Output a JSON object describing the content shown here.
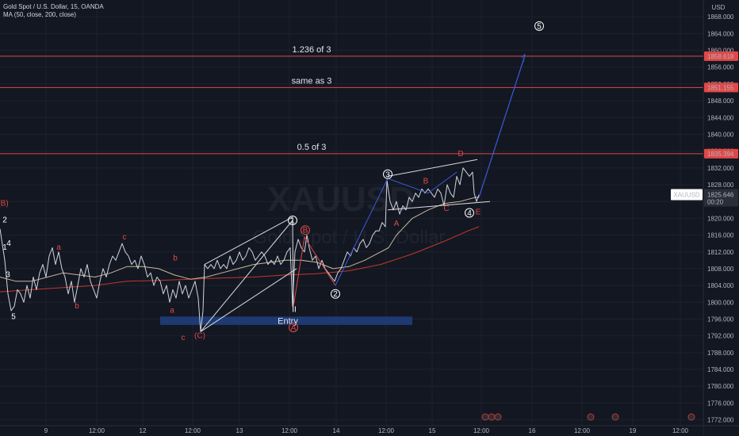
{
  "header": {
    "symbol_line": "Gold Spot / U.S. Dollar, 15, OANDA",
    "ma_line": "MA (50, close, 200, close)"
  },
  "colors": {
    "background": "#131722",
    "grid": "#1e222d",
    "price_line": "#d1d4dc",
    "ma50": "#c8b89a",
    "ma200": "#c0392b",
    "level": "#e04848",
    "wave_white": "#d8dbe2",
    "wave_blue": "#3b5bdb",
    "label_red": "#e04848",
    "entry_band": "#1f3a72"
  },
  "chart_data": {
    "type": "line",
    "currency": "USD",
    "y_ticks": [
      1772,
      1776,
      1780,
      1784,
      1788,
      1792,
      1796,
      1800,
      1804,
      1808,
      1812,
      1816,
      1820,
      1824,
      1828,
      1832,
      1836,
      1840,
      1844,
      1848,
      1852,
      1856,
      1860,
      1864,
      1868
    ],
    "y_tick_labels": [
      "1772.000",
      "1776.000",
      "1780.000",
      "1784.000",
      "1788.000",
      "1792.000",
      "1796.000",
      "1800.000",
      "1804.000",
      "1808.000",
      "1812.000",
      "1816.000",
      "1820.000",
      "1824.000",
      "1828.000",
      "1832.000",
      "1836.000",
      "1840.000",
      "1844.000",
      "1848.000",
      "1852.000",
      "1856.000",
      "1860.000",
      "1864.000",
      "1868.000"
    ],
    "ylim": [
      1770.6,
      1872
    ],
    "xlim": [
      0,
      900
    ],
    "x_ticks": [
      {
        "label": "9",
        "x": 58
      },
      {
        "label": "12:00",
        "x": 122
      },
      {
        "label": "12",
        "x": 180
      },
      {
        "label": "12:00",
        "x": 243
      },
      {
        "label": "13",
        "x": 302
      },
      {
        "label": "12:00",
        "x": 365
      },
      {
        "label": "14",
        "x": 424
      },
      {
        "label": "12:00",
        "x": 487
      },
      {
        "label": "15",
        "x": 545
      },
      {
        "label": "12:00",
        "x": 607
      },
      {
        "label": "16",
        "x": 671
      },
      {
        "label": "12:00",
        "x": 734
      },
      {
        "label": "19",
        "x": 798
      },
      {
        "label": "12:00",
        "x": 858
      }
    ],
    "price": [
      [
        0,
        1817.5
      ],
      [
        6,
        1810
      ],
      [
        10,
        1802
      ],
      [
        14,
        1798
      ],
      [
        18,
        1799
      ],
      [
        22,
        1803
      ],
      [
        26,
        1802
      ],
      [
        30,
        1800
      ],
      [
        34,
        1804
      ],
      [
        38,
        1801
      ],
      [
        42,
        1806
      ],
      [
        46,
        1803
      ],
      [
        50,
        1807
      ],
      [
        54,
        1809
      ],
      [
        58,
        1806
      ],
      [
        62,
        1811
      ],
      [
        66,
        1813
      ],
      [
        70,
        1809
      ],
      [
        74,
        1812
      ],
      [
        78,
        1808
      ],
      [
        82,
        1806
      ],
      [
        86,
        1802
      ],
      [
        90,
        1805
      ],
      [
        94,
        1800
      ],
      [
        98,
        1804
      ],
      [
        102,
        1808
      ],
      [
        106,
        1806
      ],
      [
        110,
        1809
      ],
      [
        114,
        1805
      ],
      [
        118,
        1803
      ],
      [
        122,
        1801
      ],
      [
        126,
        1805
      ],
      [
        130,
        1808
      ],
      [
        134,
        1806
      ],
      [
        138,
        1809
      ],
      [
        142,
        1811
      ],
      [
        146,
        1810
      ],
      [
        150,
        1812
      ],
      [
        154,
        1814
      ],
      [
        158,
        1812
      ],
      [
        162,
        1811
      ],
      [
        166,
        1809
      ],
      [
        170,
        1810
      ],
      [
        174,
        1808
      ],
      [
        178,
        1811
      ],
      [
        182,
        1809
      ],
      [
        186,
        1806
      ],
      [
        190,
        1807
      ],
      [
        194,
        1804
      ],
      [
        198,
        1806
      ],
      [
        202,
        1805
      ],
      [
        206,
        1802
      ],
      [
        210,
        1804
      ],
      [
        214,
        1800
      ],
      [
        218,
        1803
      ],
      [
        222,
        1801
      ],
      [
        226,
        1805
      ],
      [
        230,
        1802
      ],
      [
        234,
        1804
      ],
      [
        238,
        1801
      ],
      [
        242,
        1803
      ],
      [
        246,
        1805
      ],
      [
        250,
        1801
      ],
      [
        253,
        1793
      ],
      [
        256,
        1798
      ],
      [
        258,
        1809
      ],
      [
        262,
        1808
      ],
      [
        266,
        1809
      ],
      [
        270,
        1808
      ],
      [
        274,
        1810
      ],
      [
        278,
        1808
      ],
      [
        282,
        1809
      ],
      [
        286,
        1808
      ],
      [
        290,
        1811
      ],
      [
        294,
        1809
      ],
      [
        298,
        1810
      ],
      [
        302,
        1812
      ],
      [
        306,
        1810
      ],
      [
        310,
        1811
      ],
      [
        314,
        1813
      ],
      [
        318,
        1812
      ],
      [
        322,
        1810
      ],
      [
        326,
        1811
      ],
      [
        330,
        1812
      ],
      [
        334,
        1811
      ],
      [
        338,
        1809
      ],
      [
        342,
        1810
      ],
      [
        346,
        1809
      ],
      [
        350,
        1811
      ],
      [
        354,
        1809
      ],
      [
        358,
        1810
      ],
      [
        362,
        1812
      ],
      [
        366,
        1813
      ],
      [
        369,
        1799
      ],
      [
        372,
        1812
      ],
      [
        376,
        1815
      ],
      [
        380,
        1813
      ],
      [
        384,
        1812
      ],
      [
        387,
        1816
      ],
      [
        390,
        1813
      ],
      [
        394,
        1810
      ],
      [
        398,
        1811
      ],
      [
        402,
        1808
      ],
      [
        406,
        1810
      ],
      [
        410,
        1808
      ],
      [
        414,
        1807
      ],
      [
        418,
        1806
      ],
      [
        422,
        1805
      ],
      [
        426,
        1807
      ],
      [
        430,
        1808
      ],
      [
        434,
        1810
      ],
      [
        438,
        1812
      ],
      [
        442,
        1811
      ],
      [
        446,
        1813
      ],
      [
        450,
        1812
      ],
      [
        454,
        1814
      ],
      [
        458,
        1815
      ],
      [
        462,
        1813
      ],
      [
        466,
        1814
      ],
      [
        470,
        1816
      ],
      [
        474,
        1817
      ],
      [
        478,
        1817
      ],
      [
        482,
        1819
      ],
      [
        486,
        1818
      ],
      [
        488,
        1829
      ],
      [
        492,
        1824
      ],
      [
        496,
        1822
      ],
      [
        500,
        1824
      ],
      [
        504,
        1821
      ],
      [
        508,
        1823
      ],
      [
        512,
        1822
      ],
      [
        516,
        1825
      ],
      [
        520,
        1824
      ],
      [
        524,
        1826
      ],
      [
        528,
        1825
      ],
      [
        532,
        1827
      ],
      [
        536,
        1826
      ],
      [
        540,
        1827
      ],
      [
        544,
        1826
      ],
      [
        548,
        1825
      ],
      [
        552,
        1827
      ],
      [
        556,
        1826
      ],
      [
        560,
        1823
      ],
      [
        564,
        1828
      ],
      [
        568,
        1826
      ],
      [
        572,
        1825
      ],
      [
        576,
        1830
      ],
      [
        580,
        1828
      ],
      [
        584,
        1832
      ],
      [
        588,
        1831
      ],
      [
        592,
        1830
      ],
      [
        596,
        1831
      ],
      [
        598,
        1826
      ],
      [
        601,
        1824
      ],
      [
        604,
        1825.6
      ]
    ],
    "ma50": [
      [
        0,
        1806
      ],
      [
        20,
        1805
      ],
      [
        40,
        1805
      ],
      [
        60,
        1806
      ],
      [
        80,
        1807
      ],
      [
        100,
        1806.5
      ],
      [
        120,
        1806
      ],
      [
        140,
        1807
      ],
      [
        160,
        1808.5
      ],
      [
        180,
        1808.5
      ],
      [
        200,
        1808
      ],
      [
        220,
        1806.5
      ],
      [
        240,
        1805.5
      ],
      [
        260,
        1806
      ],
      [
        280,
        1807
      ],
      [
        300,
        1808
      ],
      [
        320,
        1809
      ],
      [
        340,
        1809.5
      ],
      [
        360,
        1810
      ],
      [
        380,
        1810
      ],
      [
        400,
        1809.5
      ],
      [
        420,
        1808
      ],
      [
        440,
        1808.5
      ],
      [
        460,
        1810
      ],
      [
        480,
        1812
      ],
      [
        490,
        1813
      ],
      [
        500,
        1816
      ],
      [
        520,
        1820
      ],
      [
        540,
        1822
      ],
      [
        560,
        1823.5
      ],
      [
        580,
        1824
      ],
      [
        600,
        1825
      ],
      [
        604,
        1825
      ]
    ],
    "ma200": [
      [
        0,
        1802.5
      ],
      [
        40,
        1803
      ],
      [
        80,
        1803.5
      ],
      [
        120,
        1804
      ],
      [
        160,
        1805
      ],
      [
        200,
        1805.2
      ],
      [
        240,
        1805.5
      ],
      [
        280,
        1805.8
      ],
      [
        320,
        1806
      ],
      [
        360,
        1806.5
      ],
      [
        400,
        1806.8
      ],
      [
        440,
        1807.5
      ],
      [
        480,
        1809
      ],
      [
        520,
        1811.5
      ],
      [
        560,
        1814.5
      ],
      [
        590,
        1817
      ],
      [
        604,
        1818
      ]
    ],
    "levels": [
      {
        "price": 1858.618,
        "label": "1858.618",
        "text": "1.236 of 3"
      },
      {
        "price": 1851.155,
        "label": "1851.155",
        "text": "same as 3"
      },
      {
        "price": 1835.394,
        "label": "1835.394",
        "text": "0.5 of 3"
      }
    ],
    "current_price": {
      "symbol": "XAUUSD",
      "price": "1825.646",
      "countdown": "00:20",
      "value": 1825.646
    },
    "entry_zone": {
      "text": "Entry",
      "x1": 202,
      "x2": 520,
      "y1": 1794.6,
      "y2": 1796.6
    }
  },
  "watermark": {
    "symbol": "XAUUSD",
    "name": "Gold Spot / U.S. Dollar"
  },
  "waves": {
    "labels": [
      {
        "t": "(B)",
        "x": 4,
        "p": 1823,
        "c": "red"
      },
      {
        "t": "2",
        "x": 6,
        "p": 1819,
        "c": "white"
      },
      {
        "t": "4",
        "x": 11,
        "p": 1813.5,
        "c": "white"
      },
      {
        "t": "1",
        "x": 6,
        "p": 1812.5,
        "c": "white"
      },
      {
        "t": "3",
        "x": 10,
        "p": 1806,
        "c": "white"
      },
      {
        "t": "5",
        "x": 17,
        "p": 1796,
        "c": "white"
      },
      {
        "t": "a",
        "x": 74,
        "p": 1812.5,
        "c": "red"
      },
      {
        "t": "b",
        "x": 97,
        "p": 1798.5,
        "c": "red"
      },
      {
        "t": "c",
        "x": 157,
        "p": 1815,
        "c": "red"
      },
      {
        "t": "b",
        "x": 221,
        "p": 1810,
        "c": "red"
      },
      {
        "t": "a",
        "x": 217,
        "p": 1797.5,
        "c": "red"
      },
      {
        "t": "c",
        "x": 231,
        "p": 1791,
        "c": "red"
      },
      {
        "t": "(C)",
        "x": 252,
        "p": 1791.5,
        "c": "red"
      },
      {
        "t": "A",
        "x": 500,
        "p": 1818.2,
        "c": "red"
      },
      {
        "t": "B",
        "x": 537,
        "p": 1828.3,
        "c": "red"
      },
      {
        "t": "C",
        "x": 563,
        "p": 1821.8,
        "c": "red"
      },
      {
        "t": "D",
        "x": 581,
        "p": 1834.8,
        "c": "red"
      },
      {
        "t": "E",
        "x": 603,
        "p": 1820.9,
        "c": "red"
      },
      {
        "t": "II",
        "x": 371,
        "p": 1797.7,
        "c": "white"
      }
    ],
    "circled": [
      {
        "t": "1",
        "x": 369,
        "p": 1819.5,
        "c": "white"
      },
      {
        "t": "B",
        "x": 385,
        "p": 1817.2,
        "c": "red"
      },
      {
        "t": "A",
        "x": 370,
        "p": 1794,
        "c": "red"
      },
      {
        "t": "2",
        "x": 423,
        "p": 1802,
        "c": "white"
      },
      {
        "t": "3",
        "x": 489,
        "p": 1830.5,
        "c": "white"
      },
      {
        "t": "4",
        "x": 592,
        "p": 1821.3,
        "c": "white"
      },
      {
        "t": "5",
        "x": 680,
        "p": 1865.8,
        "c": "white"
      }
    ]
  }
}
